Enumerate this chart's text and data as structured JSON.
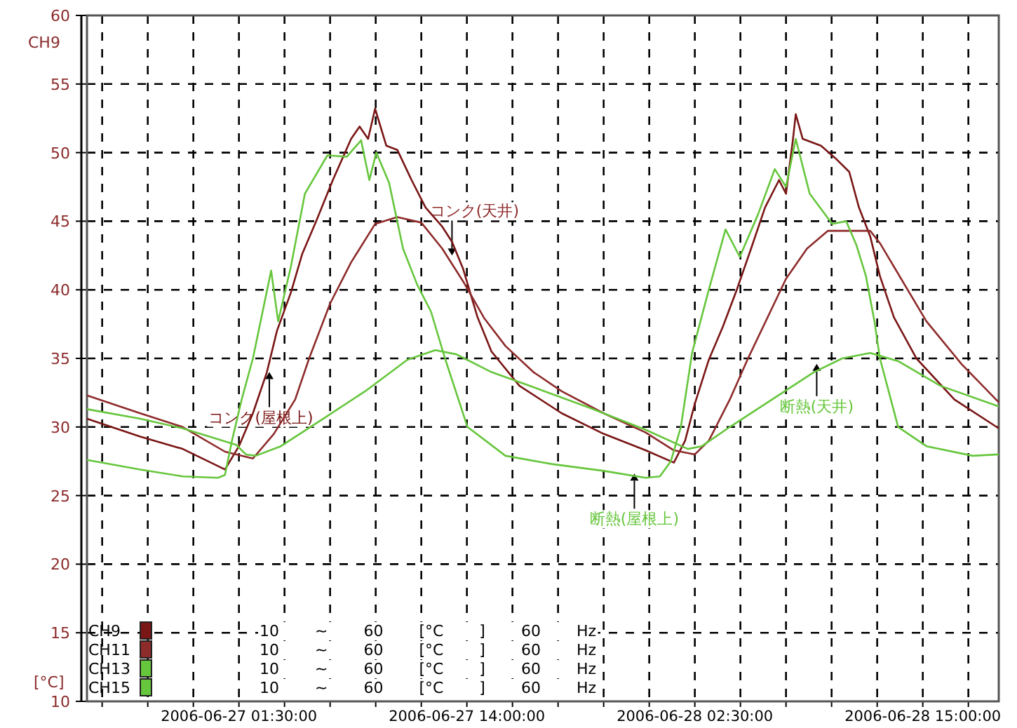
{
  "chart_data": {
    "type": "line",
    "ylabel": "[°C]",
    "xlim": [
      "2006-06-26T17:10",
      "2006-06-28T19:10"
    ],
    "ylim": [
      10,
      60
    ],
    "yticks": [
      10,
      15,
      20,
      25,
      30,
      35,
      40,
      45,
      50,
      55,
      60
    ],
    "xticks": [
      {
        "value": "2006-06-26T18:00",
        "label": null
      },
      {
        "value": "2006-06-26T20:30",
        "label": null
      },
      {
        "value": "2006-06-26T23:00",
        "label": null
      },
      {
        "value": "2006-06-27T01:30",
        "label": "2006-06-27 01:30:00"
      },
      {
        "value": "2006-06-27T04:00",
        "label": null
      },
      {
        "value": "2006-06-27T06:30",
        "label": null
      },
      {
        "value": "2006-06-27T09:00",
        "label": null
      },
      {
        "value": "2006-06-27T11:30",
        "label": null
      },
      {
        "value": "2006-06-27T14:00",
        "label": "2006-06-27 14:00:00"
      },
      {
        "value": "2006-06-27T16:30",
        "label": null
      },
      {
        "value": "2006-06-27T19:00",
        "label": null
      },
      {
        "value": "2006-06-27T21:30",
        "label": null
      },
      {
        "value": "2006-06-28T00:00",
        "label": null
      },
      {
        "value": "2006-06-28T02:30",
        "label": "2006-06-28 02:30:00"
      },
      {
        "value": "2006-06-28T05:00",
        "label": null
      },
      {
        "value": "2006-06-28T07:30",
        "label": null
      },
      {
        "value": "2006-06-28T10:00",
        "label": null
      },
      {
        "value": "2006-06-28T12:30",
        "label": null
      },
      {
        "value": "2006-06-28T15:00",
        "label": "2006-06-28 15:00:00"
      },
      {
        "value": "2006-06-28T17:30",
        "label": null
      }
    ],
    "grid": true,
    "legend": "bottom left",
    "marker": "none",
    "line_style": "solid",
    "series": [
      {
        "name": "CH9",
        "color": "#7a1616",
        "x": [
          "2006-06-26T17:10",
          "2006-06-26T20:05",
          "2006-06-26T22:25",
          "2006-06-27T00:44",
          "2006-06-27T01:30",
          "2006-06-27T02:16",
          "2006-06-27T03:02",
          "2006-06-27T03:35",
          "2006-06-27T04:21",
          "2006-06-27T04:58",
          "2006-06-27T05:44",
          "2006-06-27T06:39",
          "2006-06-27T07:39",
          "2006-06-27T08:07",
          "2006-06-27T08:35",
          "2006-06-27T08:58",
          "2006-06-27T09:35",
          "2006-06-27T10:11",
          "2006-06-27T10:58",
          "2006-06-27T11:44",
          "2006-06-27T12:39",
          "2006-06-27T13:11",
          "2006-06-27T13:48",
          "2006-06-27T14:35",
          "2006-06-27T15:21",
          "2006-06-27T16:53",
          "2006-06-27T19:12",
          "2006-06-27T21:30",
          "2006-06-27T23:48",
          "2006-06-28T01:21",
          "2006-06-28T01:58",
          "2006-06-28T02:30",
          "2006-06-28T03:16",
          "2006-06-28T04:02",
          "2006-06-28T04:48",
          "2006-06-28T05:35",
          "2006-06-28T06:21",
          "2006-06-28T07:07",
          "2006-06-28T07:30",
          "2006-06-28T07:53",
          "2006-06-28T08:02",
          "2006-06-28T08:25",
          "2006-06-28T09:25",
          "2006-06-28T10:12",
          "2006-06-28T10:58",
          "2006-06-28T11:30",
          "2006-06-28T12:07",
          "2006-06-28T12:39",
          "2006-06-28T13:25",
          "2006-06-28T14:39",
          "2006-06-28T16:44",
          "2006-06-28T19:10"
        ],
        "values": [
          30.6,
          29.3,
          28.4,
          26.9,
          28.6,
          31,
          34,
          37,
          39.8,
          42.6,
          45,
          48,
          51,
          51.9,
          51,
          53.2,
          50.5,
          50.2,
          48,
          46,
          44.6,
          43.5,
          41.5,
          38,
          35.5,
          33,
          31,
          29.5,
          28.3,
          27.4,
          29,
          31.7,
          34.9,
          37.3,
          40,
          43,
          46,
          48,
          47,
          51,
          52.8,
          51,
          50.5,
          49.6,
          48.6,
          46,
          43.9,
          41,
          38,
          35,
          32,
          29.9
        ]
      },
      {
        "name": "CH11",
        "color": "#8e2b2b",
        "x": [
          "2006-06-26T17:10",
          "2006-06-26T20:05",
          "2006-06-26T22:25",
          "2006-06-27T00:44",
          "2006-06-27T02:16",
          "2006-06-27T03:25",
          "2006-06-27T04:35",
          "2006-06-27T05:21",
          "2006-06-27T06:30",
          "2006-06-27T07:39",
          "2006-06-27T08:58",
          "2006-06-27T10:11",
          "2006-06-27T11:30",
          "2006-06-27T12:39",
          "2006-06-27T13:48",
          "2006-06-27T14:58",
          "2006-06-27T16:07",
          "2006-06-27T17:39",
          "2006-06-27T19:12",
          "2006-06-27T21:30",
          "2006-06-27T23:48",
          "2006-06-28T01:21",
          "2006-06-28T02:30",
          "2006-06-28T03:16",
          "2006-06-28T04:25",
          "2006-06-28T05:25",
          "2006-06-28T07:30",
          "2006-06-28T08:39",
          "2006-06-28T09:48",
          "2006-06-28T12:07",
          "2006-06-28T12:39",
          "2006-06-28T15:12",
          "2006-06-28T17:07",
          "2006-06-28T19:10"
        ],
        "values": [
          32.3,
          31,
          30,
          28.2,
          27.7,
          29.5,
          32,
          35,
          39,
          42,
          44.8,
          45.3,
          44.9,
          43,
          40.6,
          37.9,
          35.9,
          34,
          32.6,
          31,
          29.6,
          28.3,
          28,
          29,
          32,
          35,
          40.8,
          43,
          44.3,
          44.3,
          43.4,
          37.7,
          34.6,
          31.8
        ]
      },
      {
        "name": "CH13",
        "color": "#66c63c",
        "x": [
          "2006-06-26T17:10",
          "2006-06-26T20:05",
          "2006-06-26T22:25",
          "2006-06-27T00:21",
          "2006-06-27T00:44",
          "2006-06-27T01:07",
          "2006-06-27T01:39",
          "2006-06-27T02:16",
          "2006-06-27T03:16",
          "2006-06-27T03:39",
          "2006-06-27T04:21",
          "2006-06-27T05:07",
          "2006-06-27T06:21",
          "2006-06-27T07:25",
          "2006-06-27T08:12",
          "2006-06-27T08:39",
          "2006-06-27T09:02",
          "2006-06-27T09:44",
          "2006-06-27T10:30",
          "2006-06-27T11:16",
          "2006-06-27T12:02",
          "2006-06-27T12:48",
          "2006-06-27T14:02",
          "2006-06-27T16:07",
          "2006-06-27T18:39",
          "2006-06-27T21:30",
          "2006-06-27T23:48",
          "2006-06-28T00:35",
          "2006-06-28T01:11",
          "2006-06-28T01:44",
          "2006-06-28T02:21",
          "2006-06-28T03:16",
          "2006-06-28T04:11",
          "2006-06-28T04:58",
          "2006-06-28T05:58",
          "2006-06-28T06:53",
          "2006-06-28T07:30",
          "2006-06-28T08:02",
          "2006-06-28T08:48",
          "2006-06-28T10:02",
          "2006-06-28T10:48",
          "2006-06-28T11:21",
          "2006-06-28T11:53",
          "2006-06-28T12:21",
          "2006-06-28T12:39",
          "2006-06-28T13:39",
          "2006-06-28T15:12",
          "2006-06-28T17:44",
          "2006-06-28T19:10"
        ],
        "values": [
          27.6,
          26.9,
          26.4,
          26.3,
          26.5,
          29,
          32,
          35,
          41.4,
          37.7,
          41.7,
          47,
          49.8,
          49.7,
          50.9,
          48,
          50,
          47.8,
          43,
          40.4,
          38.4,
          35,
          30,
          27.9,
          27.3,
          26.8,
          26.3,
          26.4,
          27.5,
          30,
          35.4,
          40,
          44.4,
          42.4,
          45.5,
          48.8,
          47.5,
          51,
          47,
          44.8,
          45,
          43.3,
          41,
          37.7,
          35,
          30,
          28.6,
          27.9,
          28
        ]
      },
      {
        "name": "CH15",
        "color": "#66c63c",
        "x": [
          "2006-06-26T17:10",
          "2006-06-26T20:05",
          "2006-06-26T22:25",
          "2006-06-27T01:21",
          "2006-06-27T01:53",
          "2006-06-27T02:25",
          "2006-06-27T03:48",
          "2006-06-27T06:07",
          "2006-06-27T08:25",
          "2006-06-27T10:44",
          "2006-06-27T12:16",
          "2006-06-27T13:25",
          "2006-06-27T15:21",
          "2006-06-27T17:39",
          "2006-06-27T20:44",
          "2006-06-27T23:48",
          "2006-06-28T02:07",
          "2006-06-28T02:53",
          "2006-06-28T04:25",
          "2006-06-28T06:44",
          "2006-06-28T09:02",
          "2006-06-28T10:35",
          "2006-06-28T12:07",
          "2006-06-28T13:39",
          "2006-06-28T15:58",
          "2006-06-28T19:10"
        ],
        "values": [
          31.3,
          30.6,
          29.9,
          28.7,
          28,
          27.9,
          28.6,
          30.6,
          32.6,
          34.9,
          35.6,
          35.3,
          34,
          32.9,
          31.4,
          29.8,
          28.4,
          28.6,
          30,
          32,
          34,
          35,
          35.4,
          34.8,
          33,
          31.5
        ]
      }
    ],
    "annotations": [
      "CH9",
      {
        "text": "コンク(屋根上)",
        "x": "2006-06-27T03:10",
        "y": 34
      },
      {
        "text": "コンク(天井)",
        "x": "2006-06-27T13:11",
        "y": 42.5
      },
      {
        "text": "断熱(屋根上)",
        "x": "2006-06-27T23:11",
        "y": 26.6
      },
      {
        "text": "断熱(天井)",
        "x": "2006-06-28T09:11",
        "y": 34.6
      },
      "10 ~ 60 [°C ] 60 Hz",
      "10 ~ 60 [°C ] 60 Hz",
      "10 ~ 60 [°C ] 60 Hz",
      "10 ~ 60 [°C ] 60 Hz"
    ]
  }
}
